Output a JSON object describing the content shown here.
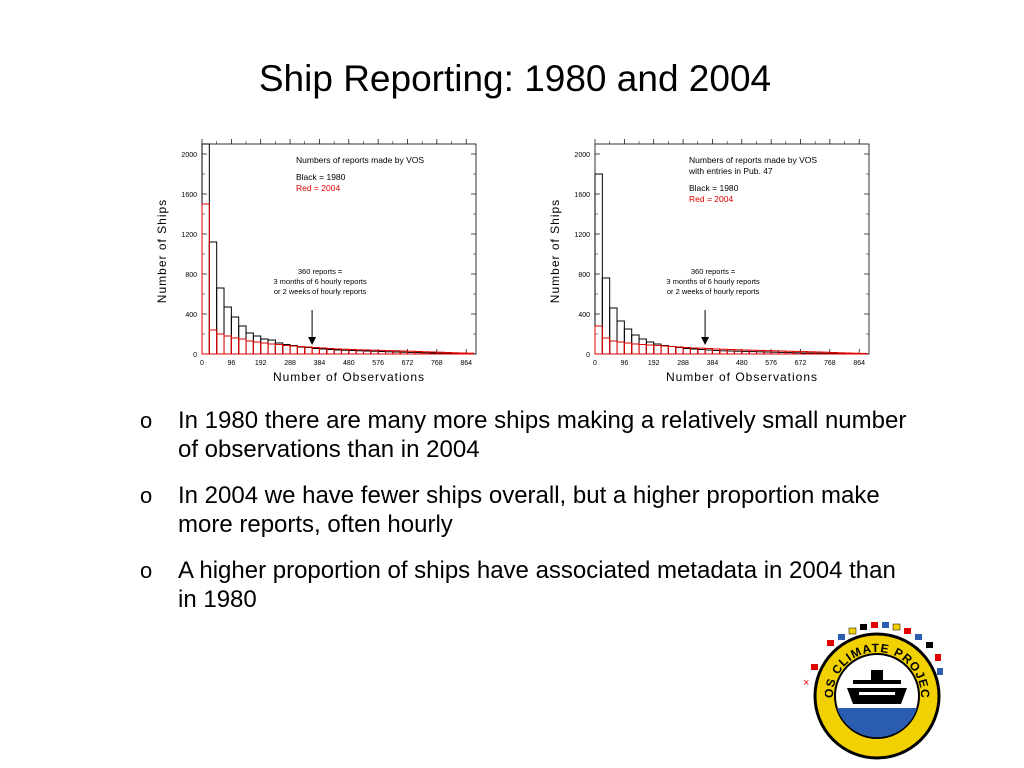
{
  "slide": {
    "title": "Ship Reporting: 1980 and 2004",
    "bullets": [
      {
        "marker": "o",
        "text": "In 1980 there are many more ships making a relatively small number of observations than in 2004"
      },
      {
        "marker": "o",
        "text": "In 2004 we have fewer ships overall, but a higher proportion make more reports, often hourly"
      },
      {
        "marker": "o",
        "text": "A higher proportion of ships have associated metadata in 2004 than in 1980"
      }
    ],
    "logo": {
      "text": "VOS CLIMATE PROJECT",
      "colors": {
        "blue": "#2a5db0",
        "yellow": "#f2d100",
        "black": "#000000"
      }
    }
  },
  "chart_data": [
    {
      "type": "bar",
      "title": "",
      "xlabel": "Number of Observations",
      "ylabel": "Number of Ships",
      "x_ticks": [
        0,
        96,
        192,
        288,
        384,
        480,
        576,
        672,
        768,
        864
      ],
      "y_ticks": [
        0,
        400,
        800,
        1200,
        1600,
        2000
      ],
      "xlim": [
        0,
        896
      ],
      "ylim": [
        0,
        2100
      ],
      "bin_width": 24,
      "annotation_lines": [
        "Numbers of reports made by VOS",
        "",
        "Black = 1980",
        "Red = 2004"
      ],
      "arrow_lines": [
        "360 reports =",
        "3 months of 6 hourly reports",
        "or 2 weeks of hourly reports"
      ],
      "arrow_x": 360,
      "series": [
        {
          "name": "Black = 1980",
          "color": "#000000",
          "values": [
            2100,
            1120,
            660,
            470,
            370,
            280,
            210,
            180,
            150,
            140,
            110,
            95,
            85,
            70,
            65,
            55,
            50,
            45,
            40,
            38,
            35,
            32,
            30,
            28,
            25,
            22,
            20,
            18,
            16,
            14,
            12,
            10,
            8,
            6,
            5,
            4,
            3
          ]
        },
        {
          "name": "Red = 2004",
          "color": "#e00000",
          "values": [
            1500,
            240,
            200,
            180,
            160,
            150,
            130,
            120,
            110,
            100,
            95,
            85,
            80,
            75,
            70,
            65,
            60,
            55,
            50,
            48,
            45,
            42,
            40,
            38,
            36,
            34,
            32,
            30,
            28,
            25,
            22,
            20,
            18,
            15,
            12,
            10,
            8
          ]
        }
      ]
    },
    {
      "type": "bar",
      "title": "",
      "xlabel": "Number of Observations",
      "ylabel": "Number of Ships",
      "x_ticks": [
        0,
        96,
        192,
        288,
        384,
        480,
        576,
        672,
        768,
        864
      ],
      "y_ticks": [
        0,
        400,
        800,
        1200,
        1600,
        2000
      ],
      "xlim": [
        0,
        896
      ],
      "ylim": [
        0,
        2100
      ],
      "bin_width": 24,
      "annotation_lines": [
        "Numbers of reports made by VOS",
        "with entries in Pub. 47",
        "",
        "Black = 1980",
        "Red = 2004"
      ],
      "arrow_lines": [
        "360 reports =",
        "3 months of 6 hourly reports",
        "or 2 weeks of hourly reports"
      ],
      "arrow_x": 360,
      "series": [
        {
          "name": "Black = 1980",
          "color": "#000000",
          "values": [
            1800,
            760,
            460,
            330,
            250,
            190,
            150,
            120,
            100,
            85,
            75,
            65,
            55,
            50,
            45,
            40,
            35,
            32,
            30,
            28,
            26,
            24,
            22,
            20,
            18,
            16,
            14,
            12,
            10,
            9,
            8,
            7,
            6,
            5,
            4,
            3,
            2
          ]
        },
        {
          "name": "Red = 2004",
          "color": "#e00000",
          "values": [
            280,
            160,
            130,
            120,
            110,
            100,
            95,
            90,
            85,
            80,
            75,
            70,
            65,
            60,
            58,
            55,
            50,
            48,
            45,
            42,
            40,
            38,
            36,
            34,
            32,
            30,
            28,
            26,
            24,
            22,
            20,
            18,
            15,
            12,
            10,
            8,
            6
          ]
        }
      ]
    }
  ]
}
